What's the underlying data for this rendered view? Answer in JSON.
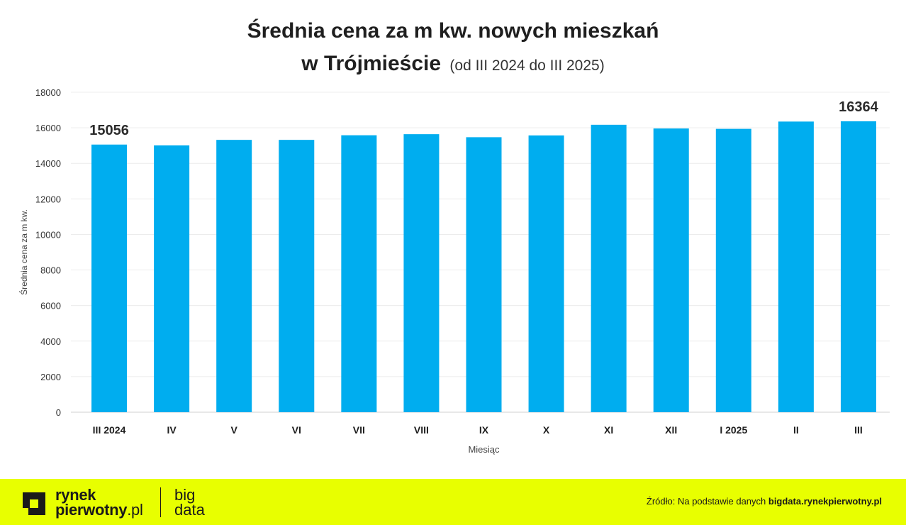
{
  "title": {
    "line1": "Średnia cena za m kw. nowych mieszkań",
    "line2": "w Trójmieście",
    "subtitle": "(od III 2024 do III 2025)"
  },
  "chart_data": {
    "type": "bar",
    "title": "Średnia cena za m kw. nowych mieszkań w Trójmieście (od III 2024 do III 2025)",
    "xlabel": "Miesiąc",
    "ylabel": "Średnia cena za m kw.",
    "ylim": [
      0,
      18000
    ],
    "yticks": [
      "0",
      "2000",
      "4000",
      "6000",
      "8000",
      "10000",
      "12000",
      "14000",
      "16000",
      "18000"
    ],
    "categories": [
      "III 2024",
      "IV",
      "V",
      "VI",
      "VII",
      "VIII",
      "IX",
      "X",
      "XI",
      "XII",
      "I 2025",
      "II",
      "III"
    ],
    "values": [
      15056,
      15010,
      15320,
      15320,
      15580,
      15640,
      15470,
      15570,
      16170,
      15960,
      15940,
      16350,
      16364
    ],
    "data_labels": [
      {
        "index": 0,
        "text": "15056"
      },
      {
        "index": 12,
        "text": "16364"
      }
    ],
    "bar_color": "#00adef",
    "grid": true
  },
  "footer": {
    "logo_line1": "rynek",
    "logo_line2": "pierwotny",
    "logo_suffix": ".pl",
    "brand2_line1": "big",
    "brand2_line2": "data",
    "source_prefix": "Źródło: Na podstawie danych ",
    "source_link": "bigdata.rynekpierwotny.pl",
    "background": "#e8ff00"
  }
}
